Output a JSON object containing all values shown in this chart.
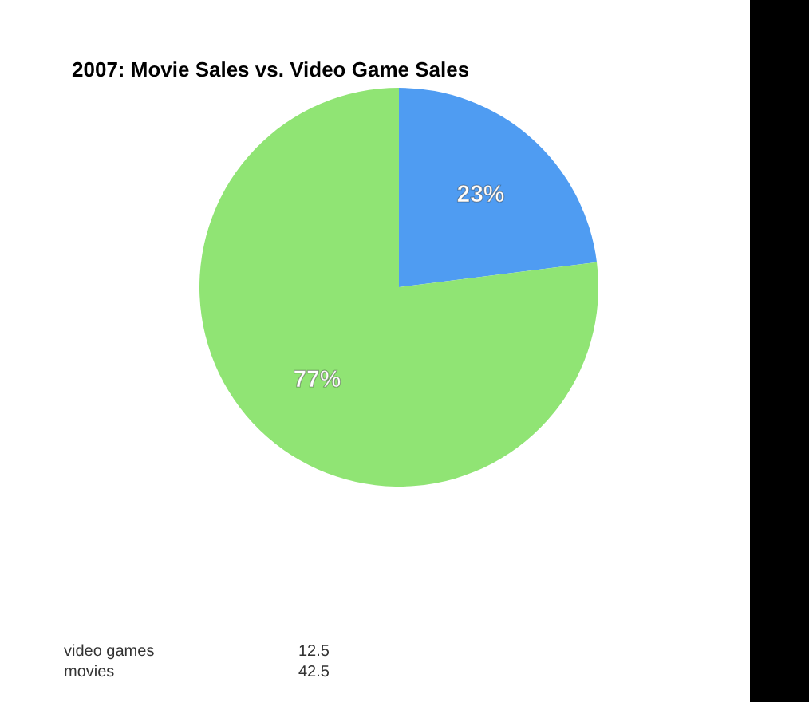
{
  "chart_data": {
    "type": "pie",
    "title": "2007: Movie Sales vs. Video Game Sales",
    "categories": [
      null,
      null
    ],
    "values": [
      23,
      77
    ],
    "colors": [
      "#4f9cf2",
      "#90e474"
    ],
    "value_labels": [
      "23%",
      "77%"
    ],
    "annotations": [
      "video games",
      "12.5",
      "movies",
      "42.5"
    ]
  }
}
